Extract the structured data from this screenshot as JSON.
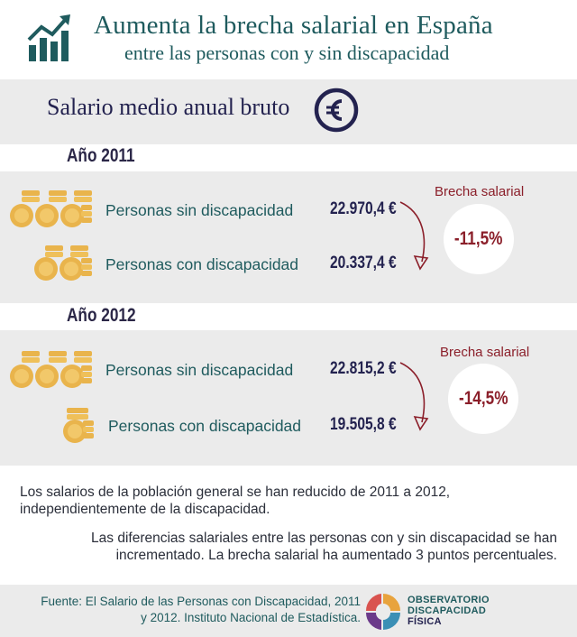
{
  "header": {
    "title": "Aumenta la brecha salarial en España",
    "subtitle": "entre las personas con y sin discapacidad",
    "icon": "growth-chart-icon"
  },
  "salary": {
    "label": "Salario medio anual bruto",
    "icon": "euro-icon"
  },
  "years": [
    {
      "year": "Año 2011",
      "rows": [
        {
          "label": "Personas sin discapacidad",
          "value": "22.970,4 €",
          "coin_stacks": 3
        },
        {
          "label": "Personas con discapacidad",
          "value": "20.337,4 €",
          "coin_stacks": 2
        }
      ],
      "gap_title": "Brecha salarial",
      "gap_value": "-11,5%"
    },
    {
      "year": "Año 2012",
      "rows": [
        {
          "label": "Personas sin discapacidad",
          "value": "22.815,2 €",
          "coin_stacks": 3
        },
        {
          "label": "Personas con discapacidad",
          "value": "19.505,8 €",
          "coin_stacks": 1
        }
      ],
      "gap_title": "Brecha salarial",
      "gap_value": "-14,5%"
    }
  ],
  "notes": [
    "Los salarios de la población general se han reducido de 2011 a 2012, independientemente de la discapacidad.",
    "Las diferencias salariales entre las personas con y sin discapacidad se han incrementado. La brecha salarial ha aumentado 3 puntos percentuales."
  ],
  "footer": {
    "source": "Fuente: El Salario de las Personas con Discapacidad, 2011 y 2012. Instituto Nacional de Estadística.",
    "logo_lines": [
      "OBSERVATORIO",
      "DISCAPACIDAD",
      "FÍSICA"
    ]
  },
  "colors": {
    "teal": "#1f5b5e",
    "navy": "#23224f",
    "gap_red": "#8b1f2a",
    "band_grey": "#ebebeb",
    "coin_gold": "#e9b44c"
  }
}
